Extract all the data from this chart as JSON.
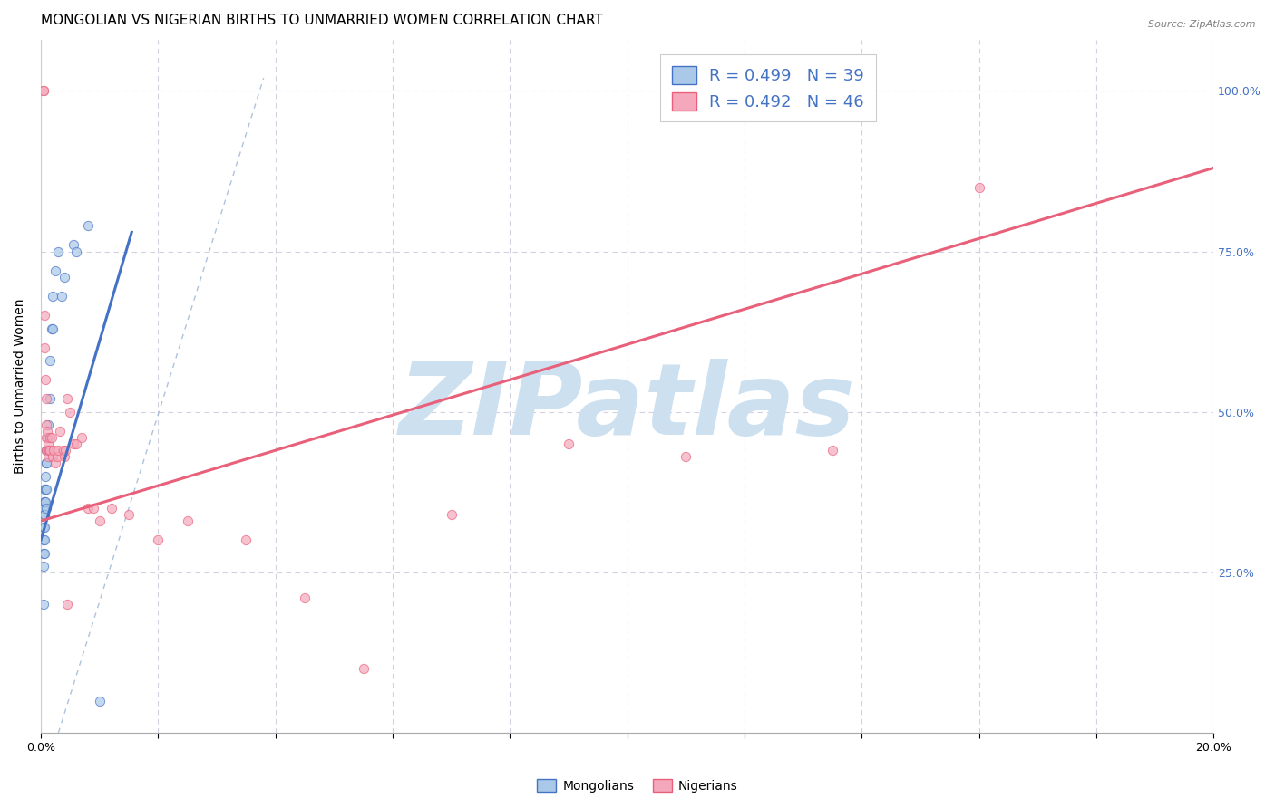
{
  "title": "MONGOLIAN VS NIGERIAN BIRTHS TO UNMARRIED WOMEN CORRELATION CHART",
  "source": "Source: ZipAtlas.com",
  "ylabel": "Births to Unmarried Women",
  "xlim": [
    0.0,
    20.0
  ],
  "ylim": [
    0.0,
    108.0
  ],
  "yticks_right": [
    25.0,
    50.0,
    75.0,
    100.0
  ],
  "ytick_labels_right": [
    "25.0%",
    "50.0%",
    "75.0%",
    "100.0%"
  ],
  "legend_blue_r": "R = 0.499",
  "legend_blue_n": "N = 39",
  "legend_pink_r": "R = 0.492",
  "legend_pink_n": "N = 46",
  "mongolian_color": "#aac8e8",
  "nigerian_color": "#f5a8bc",
  "mongolian_line_color": "#4472c4",
  "nigerian_line_color": "#e8607a",
  "legend_text_color": "#4472c4",
  "watermark_text": "ZIPatlas",
  "watermark_color": "#cce0f0",
  "background_color": "#ffffff",
  "mongolian_x": [
    0.05,
    0.05,
    0.05,
    0.05,
    0.05,
    0.06,
    0.06,
    0.06,
    0.06,
    0.07,
    0.07,
    0.07,
    0.07,
    0.08,
    0.08,
    0.08,
    0.09,
    0.09,
    0.1,
    0.1,
    0.1,
    0.11,
    0.11,
    0.12,
    0.12,
    0.15,
    0.16,
    0.18,
    0.2,
    0.2,
    0.25,
    0.3,
    0.35,
    0.4,
    0.55,
    0.6,
    0.8,
    1.0,
    0.05
  ],
  "mongolian_y": [
    35.0,
    32.0,
    30.0,
    28.0,
    26.0,
    36.0,
    34.0,
    32.0,
    30.0,
    38.0,
    36.0,
    34.0,
    28.0,
    40.0,
    38.0,
    36.0,
    42.0,
    38.0,
    44.0,
    42.0,
    35.0,
    46.0,
    44.0,
    48.0,
    44.0,
    52.0,
    58.0,
    63.0,
    63.0,
    68.0,
    72.0,
    75.0,
    68.0,
    71.0,
    76.0,
    75.0,
    79.0,
    5.0,
    20.0
  ],
  "nigerian_x": [
    0.04,
    0.05,
    0.06,
    0.07,
    0.08,
    0.09,
    0.1,
    0.1,
    0.1,
    0.11,
    0.12,
    0.13,
    0.14,
    0.15,
    0.16,
    0.18,
    0.2,
    0.22,
    0.25,
    0.28,
    0.3,
    0.32,
    0.38,
    0.4,
    0.42,
    0.45,
    0.5,
    0.55,
    0.6,
    0.7,
    0.8,
    0.9,
    1.0,
    1.2,
    1.5,
    2.0,
    2.5,
    3.5,
    4.5,
    5.5,
    7.0,
    9.0,
    11.0,
    13.5,
    16.0,
    0.45
  ],
  "nigerian_y": [
    100.0,
    100.0,
    65.0,
    60.0,
    55.0,
    52.0,
    48.0,
    46.0,
    44.0,
    47.0,
    43.0,
    45.0,
    44.0,
    46.0,
    44.0,
    46.0,
    43.0,
    44.0,
    42.0,
    43.0,
    44.0,
    47.0,
    44.0,
    43.0,
    44.0,
    52.0,
    50.0,
    45.0,
    45.0,
    46.0,
    35.0,
    35.0,
    33.0,
    35.0,
    34.0,
    30.0,
    33.0,
    30.0,
    21.0,
    10.0,
    34.0,
    45.0,
    43.0,
    44.0,
    85.0,
    20.0
  ],
  "blue_line_x0": 0.0,
  "blue_line_x1": 1.55,
  "blue_line_y0": 30.0,
  "blue_line_y1": 78.0,
  "pink_line_x0": 0.0,
  "pink_line_x1": 20.0,
  "pink_line_y0": 33.0,
  "pink_line_y1": 88.0,
  "dash_line_x0": 0.3,
  "dash_line_x1": 3.8,
  "dash_line_y0": 0.0,
  "dash_line_y1": 102.0,
  "title_fontsize": 11,
  "axis_label_fontsize": 10,
  "tick_fontsize": 9,
  "legend_fontsize": 13,
  "dot_size": 55,
  "dot_alpha": 0.7
}
